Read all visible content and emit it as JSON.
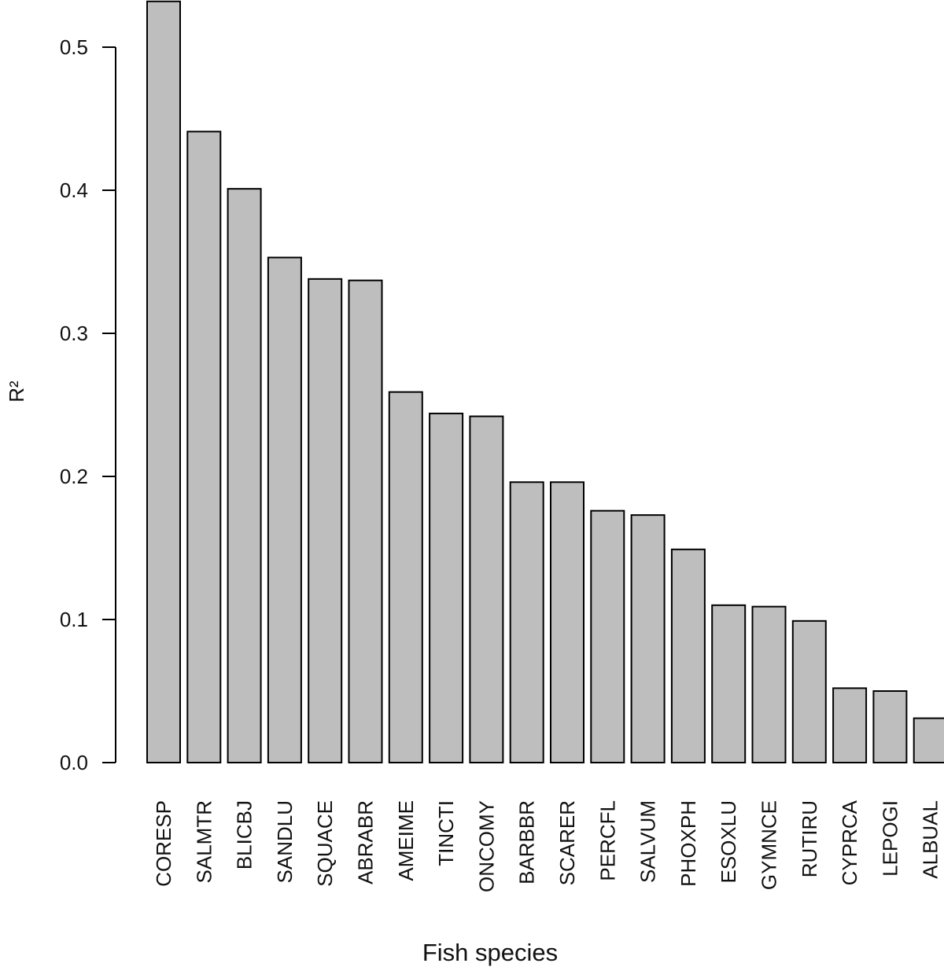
{
  "chart_data": {
    "type": "bar",
    "title": "",
    "xlabel": "Fish species",
    "ylabel": "R²",
    "ylim": [
      0,
      0.53
    ],
    "yticks": [
      0.0,
      0.1,
      0.2,
      0.3,
      0.4,
      0.5
    ],
    "ytick_labels": [
      "0.0",
      "0.1",
      "0.2",
      "0.3",
      "0.4",
      "0.5"
    ],
    "categories": [
      "CORESP",
      "SALMTR",
      "BLICBJ",
      "SANDLU",
      "SQUACE",
      "ABRABR",
      "AMEIME",
      "TINCTI",
      "ONCOMY",
      "BARBBR",
      "SCARER",
      "PERCFL",
      "SALVUM",
      "PHOXPH",
      "ESOXLU",
      "GYMNCE",
      "RUTIRU",
      "CYPRCA",
      "LEPOGI",
      "ALBUAL"
    ],
    "values": [
      0.532,
      0.441,
      0.401,
      0.353,
      0.338,
      0.337,
      0.259,
      0.244,
      0.242,
      0.196,
      0.196,
      0.176,
      0.173,
      0.149,
      0.11,
      0.109,
      0.099,
      0.052,
      0.05,
      0.031
    ],
    "grid": false,
    "legend": "none",
    "colors": {
      "bar_fill": "#bebebe",
      "bar_stroke": "#000000",
      "axis": "#000000",
      "text": "#111111",
      "background": "#ffffff"
    }
  }
}
